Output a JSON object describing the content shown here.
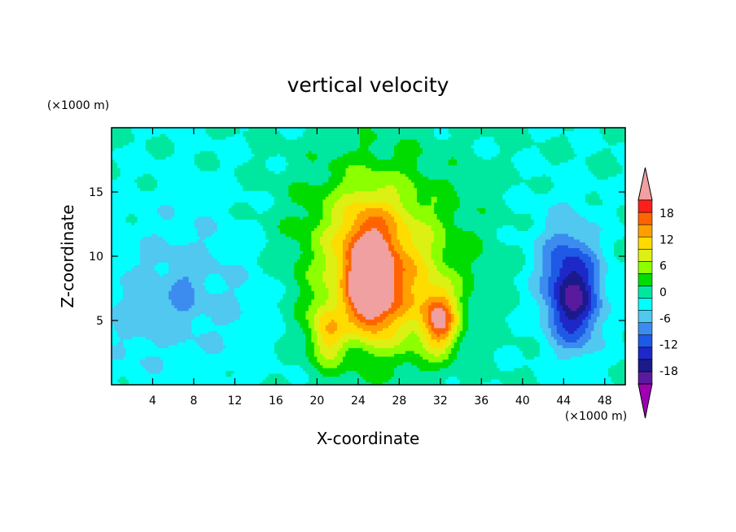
{
  "chart_data": {
    "type": "heatmap",
    "title": "vertical velocity",
    "xlabel": "X-coordinate",
    "ylabel": "Z-coordinate",
    "x_unit_label": "(×1000 m)",
    "y_unit_label": "(×1000 m)",
    "xlim": [
      0,
      50
    ],
    "ylim": [
      0,
      20
    ],
    "x_ticks": [
      4,
      8,
      12,
      16,
      20,
      24,
      28,
      32,
      36,
      40,
      44,
      48
    ],
    "y_ticks": [
      5,
      10,
      15
    ],
    "colorbar": {
      "min": -21,
      "max": 21,
      "levels": [
        -21,
        -18,
        -15,
        -12,
        -9,
        -6,
        -3,
        0,
        3,
        6,
        9,
        12,
        15,
        18,
        21
      ],
      "tick_labels": [
        18,
        12,
        6,
        0,
        -6,
        -12,
        -18
      ],
      "colors": [
        "#5a1a9e",
        "#1a1a8c",
        "#1e28c8",
        "#1e5ae6",
        "#3c8cf0",
        "#50c8f0",
        "#00ffff",
        "#00e8a0",
        "#00dc00",
        "#8cff00",
        "#dcf014",
        "#ffdc00",
        "#ffa000",
        "#ff6400",
        "#ff1e1e"
      ],
      "extend_low_color": "#a000b4",
      "extend_high_color": "#f0a0a0"
    },
    "features": [
      {
        "x": 25,
        "z": 7.5,
        "amp": 18,
        "sx": 1.4,
        "sz": 2.3
      },
      {
        "x": 25,
        "z": 11,
        "amp": 8,
        "sx": 2.2,
        "sz": 3
      },
      {
        "x": 32,
        "z": 5,
        "amp": 17,
        "sx": 1.2,
        "sz": 1.7
      },
      {
        "x": 21,
        "z": 4,
        "amp": 11,
        "sx": 1.2,
        "sz": 1.7
      },
      {
        "x": 28,
        "z": 6.5,
        "amp": 6,
        "sx": 2.5,
        "sz": 3
      },
      {
        "x": 26,
        "z": 10,
        "amp": 12,
        "sx": 5.5,
        "sz": 5
      },
      {
        "x": 45,
        "z": 6.5,
        "amp": -16,
        "sx": 1.8,
        "sz": 2.6
      },
      {
        "x": 44,
        "z": 10,
        "amp": -6,
        "sx": 2.2,
        "sz": 3
      },
      {
        "x": 7,
        "z": 8,
        "amp": -4,
        "sx": 4,
        "sz": 5
      },
      {
        "x": 7,
        "z": 7,
        "amp": -3,
        "sx": 1,
        "sz": 1.5
      },
      {
        "x": 2,
        "z": 5,
        "amp": -3,
        "sx": 2,
        "sz": 3
      },
      {
        "x": 14,
        "z": 6,
        "amp": -2,
        "sx": 3,
        "sz": 4
      }
    ]
  }
}
